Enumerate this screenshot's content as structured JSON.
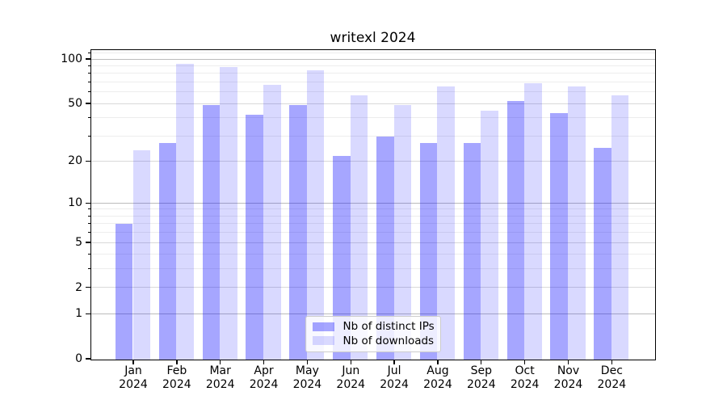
{
  "chart_data": {
    "type": "bar",
    "title": "writexl 2024",
    "categories": [
      "Jan",
      "Feb",
      "Mar",
      "Apr",
      "May",
      "Jun",
      "Jul",
      "Aug",
      "Sep",
      "Oct",
      "Nov",
      "Dec"
    ],
    "x_tick_second_line": "2024",
    "series": [
      {
        "name": "Nb of distinct IPs",
        "color": "#0000FF",
        "alpha": 0.35,
        "values": [
          7,
          27,
          49,
          42,
          49,
          22,
          30,
          27,
          27,
          52,
          43,
          25
        ]
      },
      {
        "name": "Nb of downloads",
        "color": "#0000FF",
        "alpha": 0.15,
        "values": [
          24,
          94,
          89,
          67,
          85,
          57,
          49,
          66,
          45,
          69,
          66,
          57
        ]
      }
    ],
    "yscale": "log1p",
    "ylim": [
      0,
      115
    ],
    "yticks": [
      0,
      1,
      2,
      5,
      10,
      20,
      50,
      100
    ],
    "minor_gridlines": [
      3,
      4,
      6,
      7,
      8,
      9,
      30,
      40,
      60,
      70,
      80,
      90,
      110
    ],
    "grid": true,
    "legend_position": "lower center",
    "background": "#FFFFFF"
  }
}
